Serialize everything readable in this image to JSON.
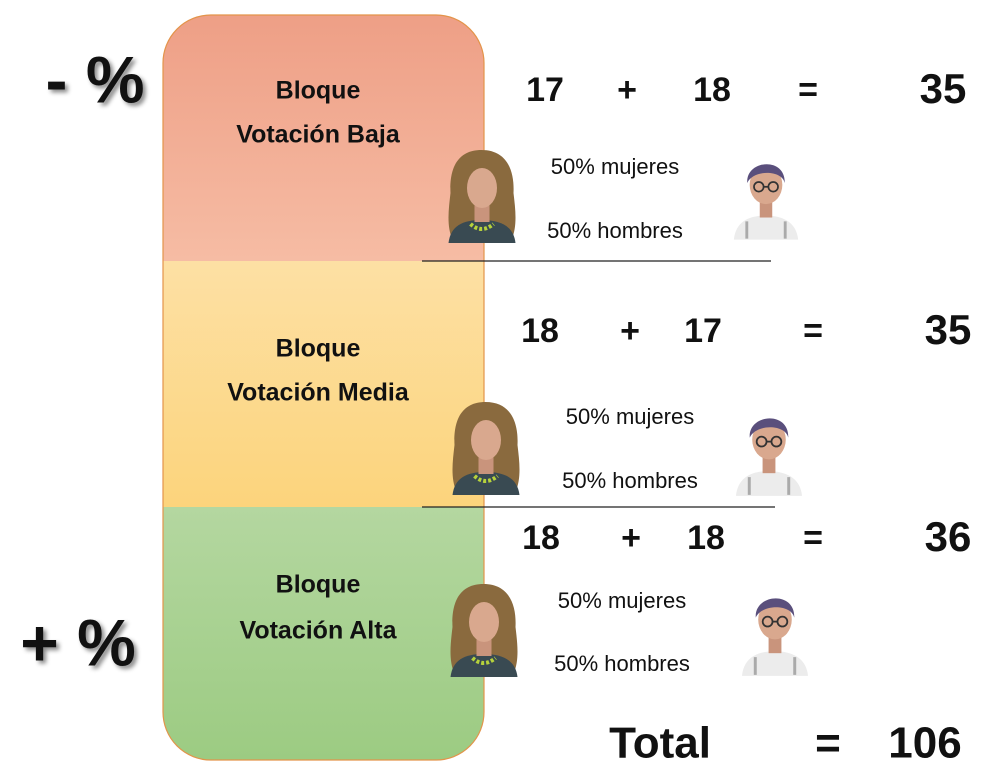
{
  "side_labels": {
    "low": "- %",
    "high": "+ %"
  },
  "blocks": [
    {
      "title": [
        "Bloque",
        "Votación Baja"
      ],
      "equation": {
        "left": 17,
        "plus": "+",
        "right": 18,
        "equals": "=",
        "sum": 35
      },
      "women_share": "50% mujeres",
      "men_share": "50% hombres"
    },
    {
      "title": [
        "Bloque",
        "Votación Media"
      ],
      "equation": {
        "left": 18,
        "plus": "+",
        "right": 17,
        "equals": "=",
        "sum": 35
      },
      "women_share": "50% mujeres",
      "men_share": "50% hombres"
    },
    {
      "title": [
        "Bloque",
        "Votación Alta"
      ],
      "equation": {
        "left": 18,
        "plus": "+",
        "right": 18,
        "equals": "=",
        "sum": 36
      },
      "women_share": "50% mujeres",
      "men_share": "50% hombres"
    }
  ],
  "total": {
    "label": "Total",
    "equals": "=",
    "value": 106
  }
}
